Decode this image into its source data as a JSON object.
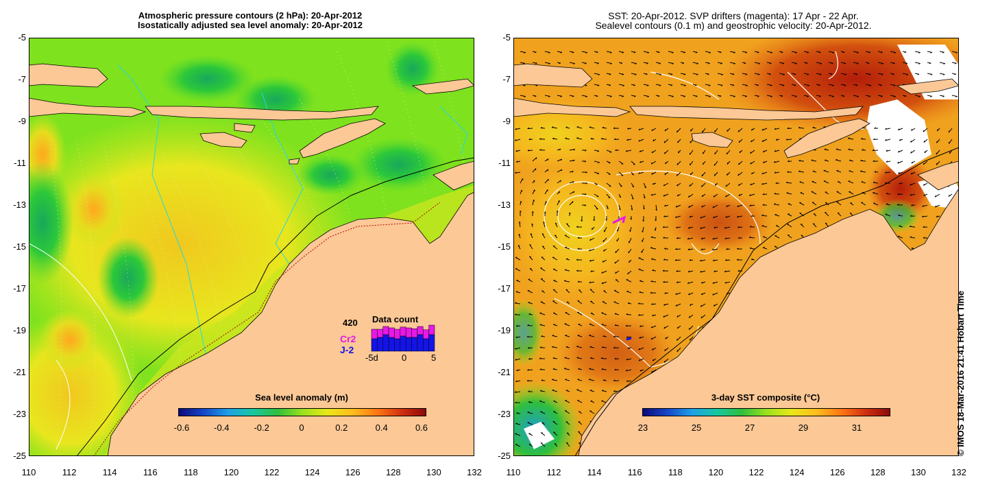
{
  "left_panel": {
    "title_line1": "Atmospheric pressure contours (2 hPa): 20-Apr-2012",
    "title_line2": "Isostatically adjusted sea level anomaly: 20-Apr-2012",
    "colorbar": {
      "title": "Sea level anomaly (m)",
      "ticks": [
        "-0.6",
        "-0.4",
        "-0.2",
        "0",
        "0.2",
        "0.4",
        "0.6"
      ],
      "colors": [
        "#0a0a7a",
        "#1646c8",
        "#1ea0e6",
        "#17c8a0",
        "#2fbf3c",
        "#9ae01e",
        "#e8e818",
        "#ffbe1e",
        "#ff7a14",
        "#d2320e",
        "#8c0a0a"
      ]
    },
    "inset": {
      "total": "420",
      "label": "Data count",
      "series": [
        {
          "name": "Cr2",
          "color": "#e619e6"
        },
        {
          "name": "J-2",
          "color": "#1414e6"
        }
      ],
      "x_ticks": [
        "-5d",
        "0",
        "5"
      ],
      "bars": [
        {
          "total": 0.8,
          "j2": 0.45
        },
        {
          "total": 0.8,
          "j2": 0.5
        },
        {
          "total": 0.9,
          "j2": 0.6
        },
        {
          "total": 0.85,
          "j2": 0.5
        },
        {
          "total": 0.8,
          "j2": 0.45
        },
        {
          "total": 0.88,
          "j2": 0.55
        },
        {
          "total": 0.85,
          "j2": 0.5
        },
        {
          "total": 0.82,
          "j2": 0.5
        },
        {
          "total": 0.9,
          "j2": 0.6
        },
        {
          "total": 0.78,
          "j2": 0.45
        },
        {
          "total": 0.95,
          "j2": 0.6
        }
      ]
    }
  },
  "right_panel": {
    "title_line1": "SST: 20-Apr-2012. SVP drifters (magenta): 17 Apr - 22 Apr.",
    "title_line2": "Sealevel contours (0.1 m) and geostrophic velocity: 20-Apr-2012.",
    "colorbar": {
      "title": "3-day SST composite (°C)",
      "ticks": [
        "23",
        "25",
        "27",
        "29",
        "31"
      ],
      "colors": [
        "#0a0a7a",
        "#1646c8",
        "#1ea0e6",
        "#17c8a0",
        "#2fbf3c",
        "#9ae01e",
        "#e8e818",
        "#ffbe1e",
        "#ff7a14",
        "#d2320e",
        "#8c0a0a"
      ]
    }
  },
  "axes": {
    "x_ticks": [
      "110",
      "112",
      "114",
      "116",
      "118",
      "120",
      "122",
      "124",
      "126",
      "128",
      "130",
      "132"
    ],
    "y_ticks": [
      "-5",
      "-7",
      "-9",
      "-11",
      "-13",
      "-15",
      "-17",
      "-19",
      "-21",
      "-23",
      "-25"
    ]
  },
  "watermark": "© IMOS 18-Mar-2016 21:41 Hobart Time",
  "colors": {
    "land": "#fbc896",
    "sla_base": "#7ee21e",
    "sst_base": "#f0a21e"
  }
}
